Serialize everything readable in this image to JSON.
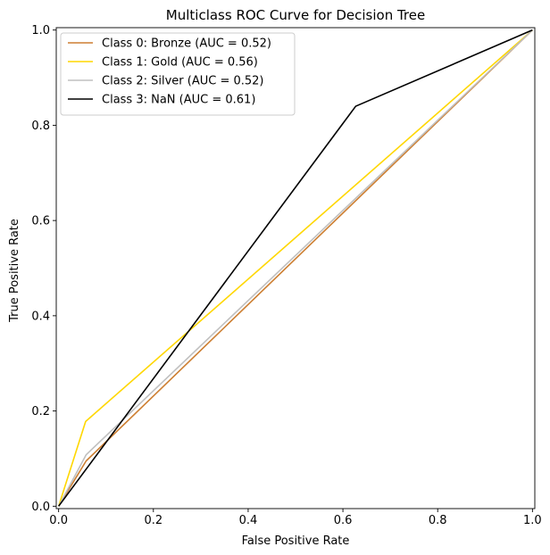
{
  "chart_data": {
    "type": "line",
    "title": "Multiclass ROC Curve for Decision Tree",
    "xlabel": "False Positive Rate",
    "ylabel": "True Positive Rate",
    "xlim": [
      -0.005,
      1.005
    ],
    "ylim": [
      -0.005,
      1.005
    ],
    "xticks": [
      0.0,
      0.2,
      0.4,
      0.6,
      0.8,
      1.0
    ],
    "yticks": [
      0.0,
      0.2,
      0.4,
      0.6,
      0.8,
      1.0
    ],
    "xtick_labels": [
      "0.0",
      "0.2",
      "0.4",
      "0.6",
      "0.8",
      "1.0"
    ],
    "ytick_labels": [
      "0.0",
      "0.2",
      "0.4",
      "0.6",
      "0.8",
      "1.0"
    ],
    "grid": false,
    "legend_position": "top-left",
    "series": [
      {
        "name": "Class 0: Bronze (AUC = 0.52)",
        "color": "#cd7f32",
        "x": [
          0.0,
          0.058,
          1.0
        ],
        "y": [
          0.0,
          0.095,
          1.0
        ]
      },
      {
        "name": "Class 1: Gold (AUC = 0.56)",
        "color": "#ffd700",
        "x": [
          0.0,
          0.057,
          1.0
        ],
        "y": [
          0.0,
          0.178,
          1.0
        ]
      },
      {
        "name": "Class 2: Silver (AUC = 0.52)",
        "color": "#c0c0c0",
        "x": [
          0.0,
          0.058,
          1.0
        ],
        "y": [
          0.0,
          0.108,
          1.0
        ]
      },
      {
        "name": "Class 3: NaN (AUC = 0.61)",
        "color": "#000000",
        "x": [
          0.0,
          0.627,
          1.0
        ],
        "y": [
          0.0,
          0.84,
          1.0
        ]
      }
    ]
  }
}
